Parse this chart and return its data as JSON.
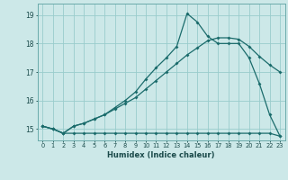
{
  "xlabel": "Humidex (Indice chaleur)",
  "bg_color": "#cce8e8",
  "grid_color": "#99cccc",
  "line_color": "#1a6b6b",
  "spine_color": "#6aabab",
  "xlim_min": -0.5,
  "xlim_max": 23.5,
  "ylim_min": 14.6,
  "ylim_max": 19.4,
  "yticks": [
    15,
    16,
    17,
    18,
    19
  ],
  "xticks": [
    0,
    1,
    2,
    3,
    4,
    5,
    6,
    7,
    8,
    9,
    10,
    11,
    12,
    13,
    14,
    15,
    16,
    17,
    18,
    19,
    20,
    21,
    22,
    23
  ],
  "curve1_x": [
    0,
    1,
    2,
    3,
    4,
    5,
    6,
    7,
    8,
    9,
    10,
    11,
    12,
    13,
    14,
    15,
    16,
    17,
    18,
    19,
    20,
    21,
    22,
    23
  ],
  "curve1_y": [
    15.1,
    15.0,
    14.85,
    15.1,
    15.2,
    15.35,
    15.5,
    15.75,
    16.0,
    16.3,
    16.75,
    17.15,
    17.5,
    17.9,
    19.05,
    18.75,
    18.25,
    18.0,
    18.0,
    18.0,
    17.5,
    16.6,
    15.5,
    14.75
  ],
  "curve2_x": [
    0,
    1,
    2,
    3,
    4,
    5,
    6,
    7,
    8,
    9,
    10,
    11,
    12,
    13,
    14,
    15,
    16,
    17,
    18,
    19,
    20,
    21,
    22,
    23
  ],
  "curve2_y": [
    15.1,
    15.0,
    14.85,
    15.1,
    15.2,
    15.35,
    15.5,
    15.7,
    15.9,
    16.1,
    16.4,
    16.7,
    17.0,
    17.3,
    17.6,
    17.85,
    18.1,
    18.2,
    18.2,
    18.15,
    17.9,
    17.55,
    17.25,
    17.0
  ],
  "curve3_x": [
    0,
    1,
    2,
    3,
    4,
    5,
    6,
    7,
    8,
    9,
    10,
    11,
    12,
    13,
    14,
    15,
    16,
    17,
    18,
    19,
    20,
    21,
    22,
    23
  ],
  "curve3_y": [
    15.1,
    15.0,
    14.85,
    14.85,
    14.85,
    14.85,
    14.85,
    14.85,
    14.85,
    14.85,
    14.85,
    14.85,
    14.85,
    14.85,
    14.85,
    14.85,
    14.85,
    14.85,
    14.85,
    14.85,
    14.85,
    14.85,
    14.85,
    14.75
  ]
}
